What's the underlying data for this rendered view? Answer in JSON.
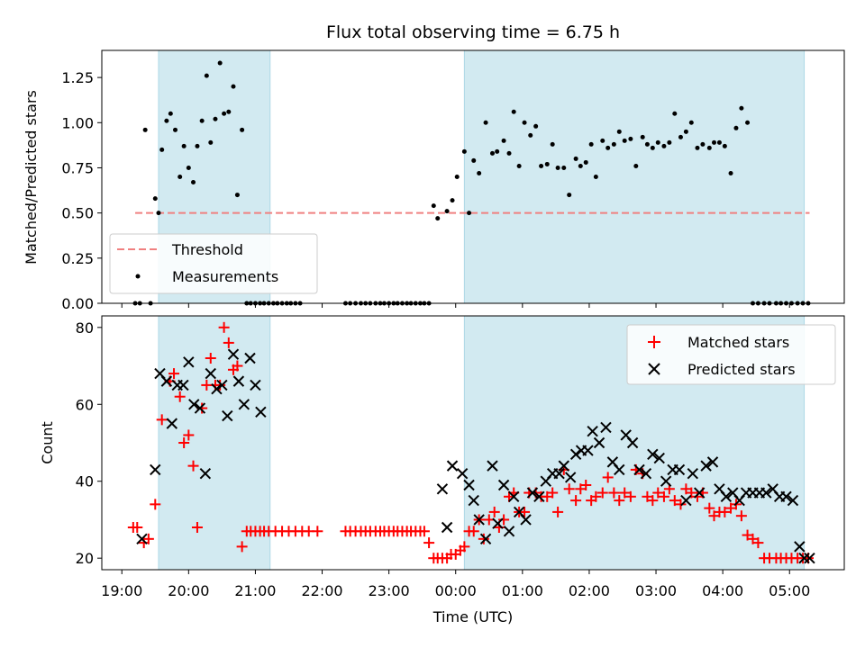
{
  "chart_data": {
    "type": "scatter",
    "title": "Flux total observing time = 6.75 h",
    "xlabel": "Time (UTC)",
    "x_unit": "hours after 19:00 UTC (ticks shown as HH:MM)",
    "x_ticks": [
      "19:00",
      "20:00",
      "21:00",
      "22:00",
      "23:00",
      "00:00",
      "01:00",
      "02:00",
      "03:00",
      "04:00",
      "05:00"
    ],
    "xlim_hours": [
      -0.3,
      10.82
    ],
    "shaded_intervals_hours": [
      [
        0.55,
        2.22
      ],
      [
        5.13,
        10.22
      ]
    ],
    "shade_color": "#add8e6",
    "top": {
      "ylabel": "Matched/Predicted stars",
      "ylim": [
        0,
        1.4
      ],
      "y_ticks": [
        "0.00",
        "0.25",
        "0.50",
        "0.75",
        "1.00",
        "1.25"
      ],
      "threshold": {
        "name": "Threshold",
        "value": 0.5,
        "x_range": [
          0.2,
          10.3
        ],
        "color": "#f08080"
      },
      "measurements": {
        "name": "Measurements",
        "color": "#000000",
        "x": [
          0.2,
          0.27,
          0.35,
          0.43,
          0.5,
          0.55,
          0.6,
          0.67,
          0.73,
          0.8,
          0.87,
          0.93,
          1.0,
          1.07,
          1.13,
          1.2,
          1.27,
          1.33,
          1.4,
          1.47,
          1.53,
          1.6,
          1.67,
          1.73,
          1.8,
          1.87,
          1.93,
          2.0,
          2.07,
          2.13,
          2.2,
          2.27,
          2.33,
          2.4,
          2.47,
          2.53,
          2.6,
          2.67,
          3.35,
          3.42,
          3.5,
          3.58,
          3.65,
          3.72,
          3.8,
          3.87,
          3.93,
          4.0,
          4.07,
          4.13,
          4.2,
          4.27,
          4.33,
          4.4,
          4.47,
          4.53,
          4.6,
          4.67,
          4.73,
          4.87,
          4.95,
          5.02,
          5.13,
          5.2,
          5.27,
          5.35,
          5.45,
          5.55,
          5.62,
          5.72,
          5.8,
          5.87,
          5.95,
          6.03,
          6.12,
          6.2,
          6.28,
          6.37,
          6.45,
          6.53,
          6.62,
          6.7,
          6.8,
          6.87,
          6.95,
          7.03,
          7.1,
          7.2,
          7.28,
          7.37,
          7.45,
          7.53,
          7.62,
          7.7,
          7.8,
          7.87,
          7.95,
          8.03,
          8.12,
          8.2,
          8.28,
          8.37,
          8.45,
          8.53,
          8.62,
          8.7,
          8.8,
          8.87,
          8.95,
          9.03,
          9.12,
          9.2,
          9.28,
          9.37,
          9.45,
          9.53,
          9.62,
          9.7,
          9.8,
          9.87,
          9.95,
          10.03,
          10.12,
          10.2,
          10.28
        ],
        "y": [
          0,
          0,
          0.96,
          0,
          0.58,
          0.5,
          0.85,
          1.01,
          1.05,
          0.96,
          0.7,
          0.87,
          0.75,
          0.67,
          0.87,
          1.01,
          1.26,
          0.89,
          1.02,
          1.33,
          1.05,
          1.06,
          1.2,
          0.6,
          0.96,
          0,
          0,
          0,
          0,
          0,
          0,
          0,
          0,
          0,
          0,
          0,
          0,
          0,
          0,
          0,
          0,
          0,
          0,
          0,
          0,
          0,
          0,
          0,
          0,
          0,
          0,
          0,
          0,
          0,
          0,
          0,
          0,
          0.54,
          0.47,
          0.51,
          0.57,
          0.7,
          0.84,
          0.5,
          0.79,
          0.72,
          1.0,
          0.83,
          0.84,
          0.9,
          0.83,
          1.06,
          0.76,
          1.0,
          0.93,
          0.98,
          0.76,
          0.77,
          0.88,
          0.75,
          0.75,
          0.6,
          0.8,
          0.76,
          0.78,
          0.88,
          0.7,
          0.9,
          0.86,
          0.88,
          0.95,
          0.9,
          0.91,
          0.76,
          0.92,
          0.88,
          0.86,
          0.89,
          0.87,
          0.89,
          1.05,
          0.92,
          0.95,
          1.0,
          0.86,
          0.88,
          0.86,
          0.89,
          0.89,
          0.87,
          0.72,
          0.97,
          1.08,
          1.0,
          0,
          0,
          0,
          0,
          0,
          0,
          0,
          0,
          0,
          0,
          0
        ]
      },
      "legend": {
        "position": "lower-left"
      }
    },
    "bottom": {
      "ylabel": "Count",
      "ylim": [
        17,
        83
      ],
      "y_ticks": [
        "20",
        "40",
        "60",
        "80"
      ],
      "series": [
        {
          "name": "Matched stars",
          "marker": "+",
          "color": "#ff0000",
          "x": [
            0.17,
            0.23,
            0.33,
            0.4,
            0.5,
            0.6,
            0.72,
            0.78,
            0.87,
            0.93,
            1.0,
            1.07,
            1.13,
            1.2,
            1.27,
            1.33,
            1.4,
            1.47,
            1.53,
            1.6,
            1.67,
            1.73,
            1.8,
            1.87,
            1.93,
            2.0,
            2.07,
            2.13,
            2.2,
            2.3,
            2.4,
            2.5,
            2.6,
            2.7,
            2.8,
            2.93,
            3.35,
            3.42,
            3.5,
            3.58,
            3.65,
            3.72,
            3.8,
            3.87,
            3.93,
            4.0,
            4.07,
            4.13,
            4.2,
            4.27,
            4.33,
            4.4,
            4.47,
            4.53,
            4.6,
            4.67,
            4.73,
            4.8,
            4.87,
            4.93,
            5.0,
            5.07,
            5.13,
            5.2,
            5.27,
            5.35,
            5.42,
            5.5,
            5.58,
            5.65,
            5.72,
            5.8,
            5.87,
            5.95,
            6.03,
            6.1,
            6.2,
            6.28,
            6.37,
            6.45,
            6.53,
            6.62,
            6.7,
            6.8,
            6.87,
            6.95,
            7.03,
            7.1,
            7.2,
            7.28,
            7.37,
            7.45,
            7.53,
            7.62,
            7.7,
            7.8,
            7.87,
            7.95,
            8.03,
            8.12,
            8.2,
            8.28,
            8.37,
            8.45,
            8.53,
            8.62,
            8.7,
            8.8,
            8.87,
            8.95,
            9.03,
            9.12,
            9.2,
            9.28,
            9.37,
            9.45,
            9.53,
            9.62,
            9.7,
            9.8,
            9.87,
            9.95,
            10.03,
            10.12,
            10.2,
            10.28
          ],
          "y": [
            28,
            28,
            24,
            25,
            34,
            56,
            66,
            68,
            62,
            50,
            52,
            44,
            28,
            59,
            65,
            72,
            65,
            65,
            80,
            76,
            69,
            70,
            23,
            27,
            27,
            27,
            27,
            27,
            27,
            27,
            27,
            27,
            27,
            27,
            27,
            27,
            27,
            27,
            27,
            27,
            27,
            27,
            27,
            27,
            27,
            27,
            27,
            27,
            27,
            27,
            27,
            27,
            27,
            27,
            24,
            20,
            20,
            20,
            20,
            21,
            21,
            22,
            23,
            27,
            27,
            30,
            25,
            30,
            32,
            28,
            30,
            36,
            37,
            32,
            32,
            37,
            37,
            36,
            36,
            37,
            32,
            43,
            38,
            35,
            38,
            39,
            35,
            36,
            37,
            41,
            37,
            35,
            37,
            36,
            43,
            42,
            36,
            35,
            37,
            36,
            38,
            35,
            34,
            38,
            37,
            36,
            37,
            33,
            31,
            32,
            32,
            33,
            34,
            31,
            26,
            25,
            24,
            20,
            20,
            20,
            20,
            20,
            20,
            20,
            20,
            20
          ],
          "x_scale_from_col": true
        },
        {
          "name": "Predicted stars",
          "marker": "x",
          "color": "#000000",
          "x": [
            0.3,
            0.5,
            0.57,
            0.67,
            0.75,
            0.83,
            0.92,
            1.0,
            1.08,
            1.17,
            1.25,
            1.33,
            1.42,
            1.5,
            1.58,
            1.67,
            1.75,
            1.83,
            1.92,
            2.0,
            2.08,
            4.8,
            4.87,
            4.95,
            5.1,
            5.2,
            5.27,
            5.35,
            5.45,
            5.55,
            5.63,
            5.72,
            5.8,
            5.87,
            5.95,
            6.05,
            6.15,
            6.25,
            6.35,
            6.45,
            6.55,
            6.62,
            6.72,
            6.8,
            6.88,
            6.98,
            7.05,
            7.15,
            7.25,
            7.35,
            7.45,
            7.55,
            7.65,
            7.75,
            7.85,
            7.95,
            8.05,
            8.15,
            8.25,
            8.35,
            8.45,
            8.55,
            8.65,
            8.75,
            8.85,
            8.95,
            9.05,
            9.15,
            9.25,
            9.35,
            9.45,
            9.55,
            9.65,
            9.75,
            9.85,
            9.95,
            10.05,
            10.15,
            10.22,
            10.3
          ],
          "y": [
            25,
            43,
            68,
            66,
            55,
            65,
            65,
            71,
            60,
            59,
            42,
            68,
            64,
            65,
            57,
            73,
            66,
            60,
            72,
            65,
            58,
            38,
            28,
            44,
            42,
            39,
            35,
            30,
            25,
            44,
            29,
            39,
            27,
            36,
            32,
            30,
            37,
            36,
            40,
            42,
            42,
            44,
            41,
            47,
            48,
            48,
            53,
            50,
            54,
            45,
            43,
            52,
            50,
            43,
            42,
            47,
            46,
            40,
            43,
            43,
            35,
            42,
            37,
            44,
            45,
            38,
            36,
            37,
            35,
            37,
            37,
            37,
            37,
            38,
            36,
            36,
            35,
            23,
            20,
            20
          ],
          "x_scale_from_col": true
        }
      ],
      "legend": {
        "position": "upper-right"
      }
    }
  }
}
